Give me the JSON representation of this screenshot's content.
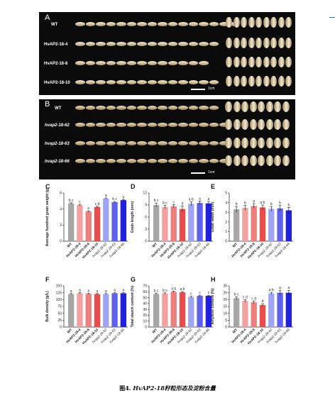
{
  "figure": {
    "caption_label": "图4.",
    "caption_text": " HvAP2-18籽粒形态及淀粉含量"
  },
  "panel_A": {
    "letter": "A",
    "rows": [
      "WT",
      "HvAP2-18-4",
      "HvAP2-18-8",
      "HvAP2-18-10"
    ],
    "scale_text": "1cm"
  },
  "panel_B": {
    "letter": "B",
    "rows": [
      "WT",
      "hvap2-18-62",
      "hvap2-18-63",
      "hvap2-18-66"
    ],
    "scale_text": "1cm"
  },
  "chart_data": [
    {
      "panel": "C",
      "type": "bar",
      "ylabel": "Average hundred grain weight (g)",
      "ylim": [
        0,
        6
      ],
      "yticks": [
        0,
        2,
        4,
        6
      ],
      "categories": [
        "WT",
        "HvAP2-18-4",
        "HvAP2-18-8",
        "HvAP2-18-10",
        "hvap2-18-62",
        "hvap2-18-63",
        "hvap2-18-66"
      ],
      "values": [
        4.7,
        4.5,
        3.7,
        4.25,
        5.3,
        4.85,
        5.1
      ],
      "errors": [
        0.08,
        0.08,
        0.06,
        0.08,
        0.08,
        0.08,
        0.08
      ],
      "letters": [
        "b c",
        "c",
        "e",
        "c d",
        "a",
        "b c",
        "a"
      ]
    },
    {
      "panel": "D",
      "type": "bar",
      "ylabel": "Grain length (mm)",
      "ylim": [
        0,
        12
      ],
      "yticks": [
        0,
        3,
        6,
        9,
        12
      ],
      "categories": [
        "WT",
        "HvAP2-18-4",
        "HvAP2-18-8",
        "HvAP2-18-10",
        "hvap2-18-62",
        "hvap2-18-63",
        "hvap2-18-66"
      ],
      "values": [
        9.0,
        8.5,
        8.7,
        8.0,
        9.3,
        9.5,
        9.4
      ],
      "errors": [
        0.5,
        0.4,
        0.4,
        0.7,
        0.5,
        0.5,
        0.5
      ],
      "letters": [
        "b c",
        "b c",
        "c",
        "d",
        "a b",
        "a",
        "a"
      ]
    },
    {
      "panel": "E",
      "type": "bar",
      "ylabel": "Grain width (mm)",
      "ylim": [
        0,
        5
      ],
      "yticks": [
        0,
        1,
        2,
        3,
        4,
        5
      ],
      "categories": [
        "WT",
        "HvAP2-18-4",
        "HvAP2-18-8",
        "HvAP2-18-10",
        "hvap2-18-62",
        "hvap2-18-63",
        "hvap2-18-66"
      ],
      "values": [
        3.3,
        3.45,
        3.65,
        3.5,
        3.35,
        3.4,
        3.2
      ],
      "errors": [
        0.3,
        0.25,
        0.25,
        0.25,
        0.25,
        0.3,
        0.3
      ],
      "letters": [
        "b",
        "b",
        "a",
        "a b",
        "b",
        "b",
        "b"
      ]
    },
    {
      "panel": "F",
      "type": "bar",
      "ylabel": "Bulk density (g/L)",
      "ylim": [
        0,
        150
      ],
      "yticks": [
        0,
        25,
        50,
        75,
        100,
        125,
        150
      ],
      "categories": [
        "WT",
        "HvAP2-18-4",
        "HvAP2-18-8",
        "HvAP2-18-10",
        "hvap2-18-62",
        "hvap2-18-63",
        "hvap2-18-66"
      ],
      "values": [
        120,
        123,
        121,
        120,
        120,
        123,
        123
      ],
      "errors": [
        2,
        2,
        2,
        2,
        2,
        2,
        2
      ],
      "letters": [
        "a",
        "a",
        "a",
        "a",
        "a",
        "a",
        "a"
      ]
    },
    {
      "panel": "G",
      "type": "bar",
      "ylabel": "Total starch content (%)",
      "ylim": [
        0,
        70
      ],
      "yticks": [
        0,
        10,
        20,
        30,
        40,
        50,
        60,
        70
      ],
      "categories": [
        "WT",
        "HvAP2-18-4",
        "HvAP2-18-8",
        "HvAP2-18-10",
        "hvap2-18-62",
        "hvap2-18-63",
        "hvap2-18-66"
      ],
      "values": [
        56,
        57,
        60,
        59,
        51,
        53,
        53
      ],
      "errors": [
        1.2,
        1.2,
        1.2,
        1.2,
        1.2,
        1.2,
        1.2
      ],
      "letters": [
        "b c",
        "b c",
        "a b",
        "a b",
        "c",
        "c",
        "c"
      ]
    },
    {
      "panel": "H",
      "type": "bar",
      "ylabel": "Amylose content (%)",
      "ylim": [
        0,
        30
      ],
      "yticks": [
        0,
        5,
        10,
        15,
        20,
        25,
        30
      ],
      "categories": [
        "WT",
        "HvAP2-18-4",
        "HvAP2-18-8",
        "HvAP2-18-10",
        "hvap2-18-62",
        "hvap2-18-63",
        "hvap2-18-66"
      ],
      "values": [
        21,
        19,
        18,
        16,
        24.5,
        25,
        25
      ],
      "errors": [
        1,
        1,
        1,
        1,
        0.8,
        1.8,
        1.8
      ],
      "letters": [
        "b c",
        "c d",
        "c d",
        "d",
        "a b",
        "a",
        "a"
      ]
    }
  ],
  "colors": {
    "bars": [
      "#a6a6a6",
      "#f2a0a0",
      "#ee7f7f",
      "#ea4b4b",
      "#9fa4f7",
      "#5f5ff0",
      "#2020dd"
    ]
  }
}
